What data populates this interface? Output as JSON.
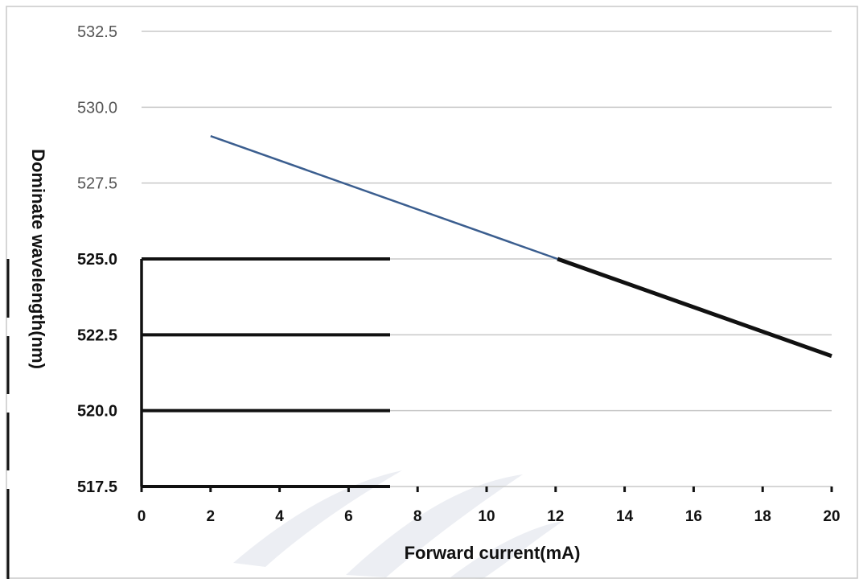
{
  "chart_data": {
    "type": "line",
    "title": "",
    "xlabel": "Forward current(mA)",
    "ylabel": "Dominate wavelength(nm)",
    "x_ticks": [
      "0",
      "2",
      "4",
      "6",
      "8",
      "10",
      "12",
      "14",
      "16",
      "18",
      "20"
    ],
    "y_ticks": [
      "517.5",
      "520.0",
      "522.5",
      "525.0",
      "527.5",
      "530.0",
      "532.5"
    ],
    "xlim": [
      0,
      20
    ],
    "ylim": [
      517.5,
      532.5
    ],
    "grid": true,
    "legend": "none",
    "series": [
      {
        "x": [
          2,
          20
        ],
        "y": [
          529.05,
          521.8
        ]
      }
    ],
    "colors": {
      "series": "#3b5e8f",
      "grid": "#c8c8c8",
      "axis": "#111111"
    }
  }
}
